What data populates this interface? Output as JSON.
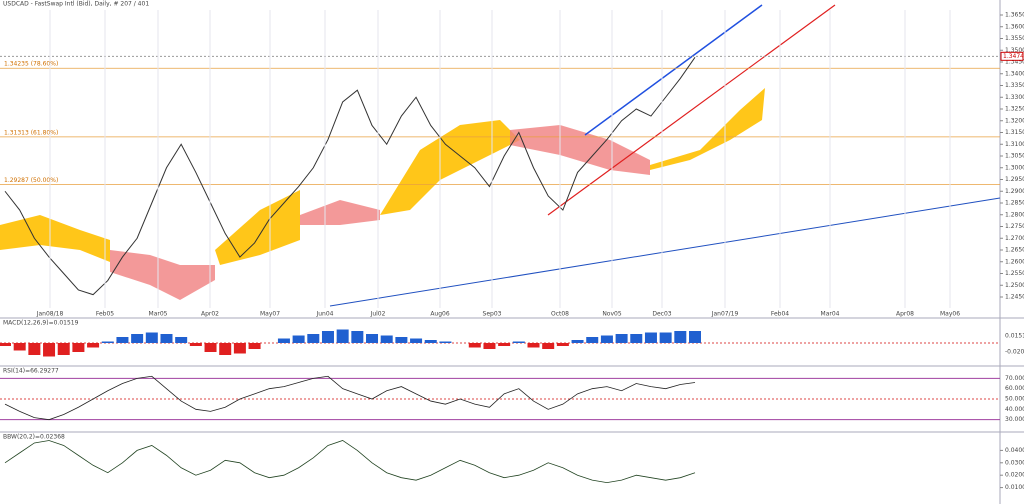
{
  "header": {
    "title": "USDCAD - FastSwap Intl (Bid), Daily, # 207 / 401"
  },
  "price_panel": {
    "yticks": [
      {
        "value": 1.365,
        "label": "1.36500"
      },
      {
        "value": 1.36,
        "label": "1.36000"
      },
      {
        "value": 1.355,
        "label": "1.35500"
      },
      {
        "value": 1.35,
        "label": "1.35000"
      },
      {
        "value": 1.345,
        "label": "1.34500"
      },
      {
        "value": 1.34,
        "label": "1.34000"
      },
      {
        "value": 1.335,
        "label": "1.33500"
      },
      {
        "value": 1.33,
        "label": "1.33000"
      },
      {
        "value": 1.325,
        "label": "1.32500"
      },
      {
        "value": 1.32,
        "label": "1.32000"
      },
      {
        "value": 1.315,
        "label": "1.31500"
      },
      {
        "value": 1.31,
        "label": "1.31000"
      },
      {
        "value": 1.305,
        "label": "1.30500"
      },
      {
        "value": 1.3,
        "label": "1.30000"
      },
      {
        "value": 1.295,
        "label": "1.29500"
      },
      {
        "value": 1.29,
        "label": "1.29000"
      },
      {
        "value": 1.285,
        "label": "1.28500"
      },
      {
        "value": 1.28,
        "label": "1.28000"
      },
      {
        "value": 1.275,
        "label": "1.27500"
      },
      {
        "value": 1.27,
        "label": "1.27000"
      },
      {
        "value": 1.265,
        "label": "1.26500"
      },
      {
        "value": 1.26,
        "label": "1.26000"
      },
      {
        "value": 1.255,
        "label": "1.25500"
      },
      {
        "value": 1.25,
        "label": "1.25000"
      },
      {
        "value": 1.245,
        "label": "1.24500"
      }
    ],
    "current_price": {
      "value": 1.34742,
      "label": "1.34742"
    },
    "fib_levels": [
      {
        "value": 1.34235,
        "label": "1.34235 (78.60%)"
      },
      {
        "value": 1.31313,
        "label": "1.31313 (61.80%)"
      },
      {
        "value": 1.29287,
        "label": "1.29287 (50.00%)"
      }
    ],
    "closes": [
      1.29,
      1.282,
      1.27,
      1.262,
      1.255,
      1.248,
      1.246,
      1.252,
      1.262,
      1.27,
      1.285,
      1.3,
      1.31,
      1.298,
      1.285,
      1.272,
      1.262,
      1.268,
      1.278,
      1.285,
      1.292,
      1.3,
      1.312,
      1.328,
      1.333,
      1.318,
      1.31,
      1.322,
      1.33,
      1.318,
      1.31,
      1.305,
      1.3,
      1.292,
      1.305,
      1.315,
      1.3,
      1.288,
      1.282,
      1.298,
      1.305,
      1.312,
      1.32,
      1.325,
      1.322,
      1.33,
      1.338,
      1.347
    ]
  },
  "dates": [
    "Jan08/18",
    "Feb05",
    "Mar05",
    "Apr02",
    "May07",
    "Jun04",
    "Jul02",
    "Aug06",
    "Sep03",
    "Oct08",
    "Nov05",
    "Dec03",
    "Jan07/19",
    "Feb04",
    "Mar04",
    "Apr08",
    "May06"
  ],
  "macd_panel": {
    "label": "MACD(12,26,9)=0.01519",
    "ticks": [
      {
        "value": 0.01519,
        "label": "0.01519"
      },
      {
        "value": -0.02,
        "label": "-0.02000"
      }
    ],
    "histogram": [
      -0.002,
      -0.005,
      -0.008,
      -0.009,
      -0.008,
      -0.006,
      -0.003,
      0.001,
      0.004,
      0.006,
      0.007,
      0.006,
      0.004,
      -0.002,
      -0.006,
      -0.008,
      -0.007,
      -0.004,
      0.0,
      0.003,
      0.005,
      0.006,
      0.008,
      0.009,
      0.008,
      0.006,
      0.005,
      0.004,
      0.003,
      0.002,
      0.001,
      0.0,
      -0.003,
      -0.004,
      -0.002,
      0.001,
      -0.003,
      -0.004,
      -0.002,
      0.002,
      0.004,
      0.005,
      0.006,
      0.006,
      0.007,
      0.007,
      0.008,
      0.008
    ]
  },
  "rsi_panel": {
    "label": "RSI(14)=66.29277",
    "ticks": [
      {
        "value": 70,
        "label": "70.00000"
      },
      {
        "value": 60,
        "label": "60.00000"
      },
      {
        "value": 50,
        "label": "50.00000"
      },
      {
        "value": 40,
        "label": "40.00000"
      },
      {
        "value": 30,
        "label": "30.00000"
      }
    ],
    "values": [
      45,
      38,
      32,
      30,
      35,
      42,
      50,
      58,
      65,
      70,
      72,
      60,
      48,
      40,
      38,
      42,
      50,
      55,
      60,
      62,
      66,
      70,
      72,
      60,
      55,
      50,
      58,
      62,
      55,
      48,
      45,
      50,
      45,
      42,
      55,
      60,
      48,
      40,
      45,
      55,
      60,
      62,
      58,
      65,
      62,
      60,
      64,
      66
    ]
  },
  "bbw_panel": {
    "label": "BBW(20,2)=0.02368",
    "ticks": [
      {
        "value": 0.04,
        "label": "0.04000"
      },
      {
        "value": 0.03,
        "label": "0.03000"
      },
      {
        "value": 0.02,
        "label": "0.02000"
      },
      {
        "value": 0.01,
        "label": "0.01000"
      }
    ],
    "values": [
      0.03,
      0.038,
      0.046,
      0.048,
      0.044,
      0.036,
      0.028,
      0.022,
      0.03,
      0.04,
      0.044,
      0.036,
      0.026,
      0.02,
      0.024,
      0.032,
      0.03,
      0.022,
      0.018,
      0.02,
      0.026,
      0.034,
      0.044,
      0.048,
      0.04,
      0.03,
      0.022,
      0.018,
      0.016,
      0.02,
      0.026,
      0.032,
      0.028,
      0.022,
      0.018,
      0.02,
      0.024,
      0.03,
      0.026,
      0.02,
      0.016,
      0.014,
      0.016,
      0.02,
      0.018,
      0.016,
      0.018,
      0.022
    ]
  }
}
